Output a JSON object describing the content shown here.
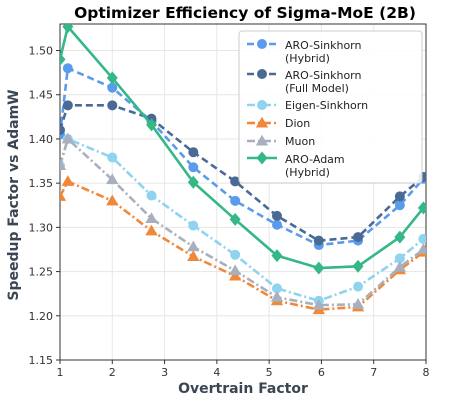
{
  "chart_data": {
    "type": "line",
    "title": "Optimizer Efficiency of Sigma-MoE (2B)",
    "xlabel": "Overtrain Factor",
    "ylabel": "Speedup Factor vs AdamW",
    "xlim": [
      1,
      8
    ],
    "ylim": [
      1.15,
      1.53
    ],
    "xticks": [
      "1",
      "2",
      "3",
      "4",
      "5",
      "6",
      "7",
      "8"
    ],
    "yticks": [
      "1.15",
      "1.20",
      "1.25",
      "1.30",
      "1.35",
      "1.40",
      "1.45",
      "1.50"
    ],
    "grid": true,
    "legend_position": "top-right",
    "series": [
      {
        "name": "ARO-Sinkhorn\n(Hybrid)",
        "color": "#5b9bec",
        "dash": "dashed",
        "marker": "circle",
        "x": [
          1.0,
          1.15,
          2.0,
          2.75,
          3.55,
          4.35,
          5.15,
          5.95,
          6.7,
          7.5,
          7.95
        ],
        "y": [
          1.405,
          1.48,
          1.458,
          1.42,
          1.368,
          1.33,
          1.303,
          1.28,
          1.285,
          1.325,
          1.355
        ]
      },
      {
        "name": "ARO-Sinkhorn\n(Full Model)",
        "color": "#4a6a96",
        "dash": "dashed",
        "marker": "circle",
        "x": [
          1.0,
          1.15,
          2.0,
          2.75,
          3.55,
          4.35,
          5.15,
          5.95,
          6.7,
          7.5,
          7.95
        ],
        "y": [
          1.41,
          1.438,
          1.438,
          1.423,
          1.385,
          1.352,
          1.313,
          1.285,
          1.289,
          1.335,
          1.357
        ]
      },
      {
        "name": "Eigen-Sinkhorn",
        "color": "#8fd3ef",
        "dash": "dashdot",
        "marker": "circle",
        "x": [
          1.0,
          1.15,
          2.0,
          2.75,
          3.55,
          4.35,
          5.15,
          5.95,
          6.7,
          7.5,
          7.95
        ],
        "y": [
          1.37,
          1.4,
          1.379,
          1.336,
          1.302,
          1.269,
          1.231,
          1.217,
          1.233,
          1.265,
          1.287
        ]
      },
      {
        "name": "Dion",
        "color": "#f0883a",
        "dash": "dashdot",
        "marker": "triangle",
        "x": [
          1.0,
          1.15,
          2.0,
          2.75,
          3.55,
          4.35,
          5.15,
          5.95,
          6.7,
          7.5,
          7.95
        ],
        "y": [
          1.335,
          1.352,
          1.33,
          1.296,
          1.267,
          1.245,
          1.217,
          1.207,
          1.21,
          1.252,
          1.272
        ]
      },
      {
        "name": "Muon",
        "color": "#a9b0bd",
        "dash": "dashdot",
        "marker": "triangle",
        "x": [
          1.0,
          1.15,
          2.0,
          2.75,
          3.55,
          4.35,
          5.15,
          5.95,
          6.7,
          7.5,
          7.95
        ],
        "y": [
          1.37,
          1.4,
          1.354,
          1.31,
          1.278,
          1.251,
          1.221,
          1.212,
          1.213,
          1.255,
          1.275
        ]
      },
      {
        "name": "ARO-Adam\n(Hybrid)",
        "color": "#33b886",
        "dash": "solid",
        "marker": "diamond",
        "x": [
          1.0,
          1.15,
          2.0,
          2.75,
          3.55,
          4.35,
          5.15,
          5.95,
          6.7,
          7.5,
          7.95
        ],
        "y": [
          1.49,
          1.527,
          1.469,
          1.416,
          1.351,
          1.309,
          1.268,
          1.254,
          1.256,
          1.289,
          1.322
        ]
      }
    ]
  }
}
